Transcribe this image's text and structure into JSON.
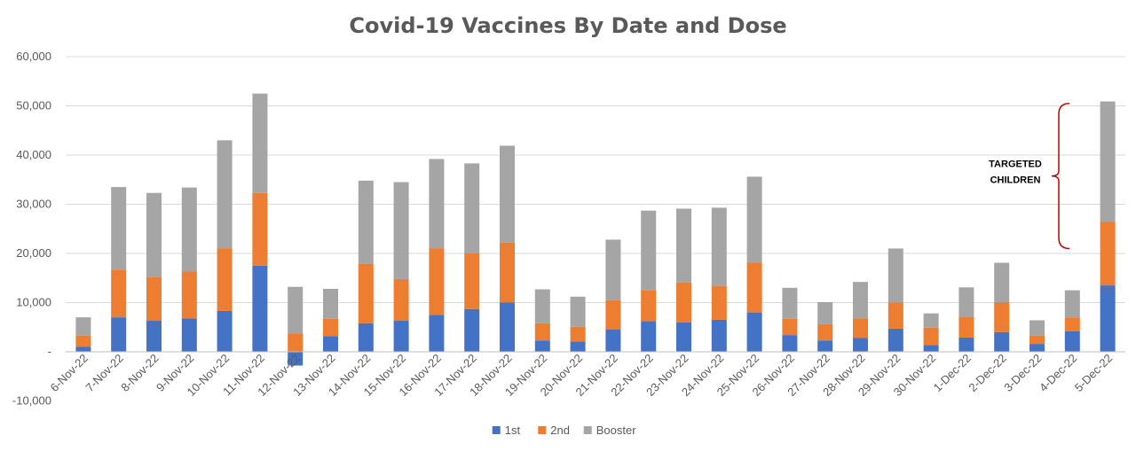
{
  "chart_data": {
    "type": "bar",
    "stacked": true,
    "title": "Covid-19 Vaccines By Date and Dose",
    "xlabel": "",
    "ylabel": "",
    "ylim": [
      -10000,
      60000
    ],
    "yticks": [
      -10000,
      0,
      10000,
      20000,
      30000,
      40000,
      50000,
      60000
    ],
    "ytick_labels": [
      "-10,000",
      "-",
      "10,000",
      "20,000",
      "30,000",
      "40,000",
      "50,000",
      "60,000"
    ],
    "grid": true,
    "legend_position": "bottom",
    "categories": [
      "6-Nov-22",
      "7-Nov-22",
      "8-Nov-22",
      "9-Nov-22",
      "10-Nov-22",
      "11-Nov-22",
      "12-Nov-22",
      "13-Nov-22",
      "14-Nov-22",
      "15-Nov-22",
      "16-Nov-22",
      "17-Nov-22",
      "18-Nov-22",
      "19-Nov-22",
      "20-Nov-22",
      "21-Nov-22",
      "22-Nov-22",
      "23-Nov-22",
      "24-Nov-22",
      "25-Nov-22",
      "26-Nov-22",
      "27-Nov-22",
      "28-Nov-22",
      "29-Nov-22",
      "30-Nov-22",
      "1-Dec-22",
      "2-Dec-22",
      "3-Dec-22",
      "4-Dec-22",
      "5-Dec-22"
    ],
    "series": [
      {
        "name": "1st",
        "color": "#4472c4",
        "values": [
          1000,
          7000,
          6300,
          6800,
          8300,
          17500,
          -2800,
          3200,
          5800,
          6300,
          7500,
          8700,
          10000,
          2300,
          2100,
          4500,
          6200,
          6000,
          6500,
          8000,
          3400,
          2300,
          2800,
          4700,
          1400,
          2900,
          4000,
          1600,
          4200,
          13500
        ]
      },
      {
        "name": "2nd",
        "color": "#ed7d31",
        "values": [
          2300,
          9700,
          8900,
          9500,
          12700,
          14800,
          3700,
          3500,
          12100,
          8500,
          13500,
          11300,
          12200,
          3500,
          3000,
          6000,
          6300,
          8100,
          6900,
          10100,
          3300,
          3300,
          4000,
          5300,
          3500,
          4200,
          6100,
          1700,
          2800,
          12900
        ]
      },
      {
        "name": "Booster",
        "color": "#a5a5a5",
        "values": [
          3700,
          16800,
          17100,
          17100,
          22000,
          20200,
          9500,
          6100,
          16900,
          19700,
          18200,
          18300,
          19700,
          6900,
          6100,
          12300,
          16200,
          15000,
          15900,
          17500,
          6300,
          4500,
          7400,
          11000,
          2900,
          6000,
          8000,
          3100,
          5500,
          24500
        ]
      }
    ],
    "annotations": [
      {
        "text_lines": [
          "TARGETED",
          "CHILDREN"
        ],
        "range": [
          21000,
          50500
        ],
        "category": "5-Dec-22",
        "color": "#c00000"
      }
    ]
  }
}
